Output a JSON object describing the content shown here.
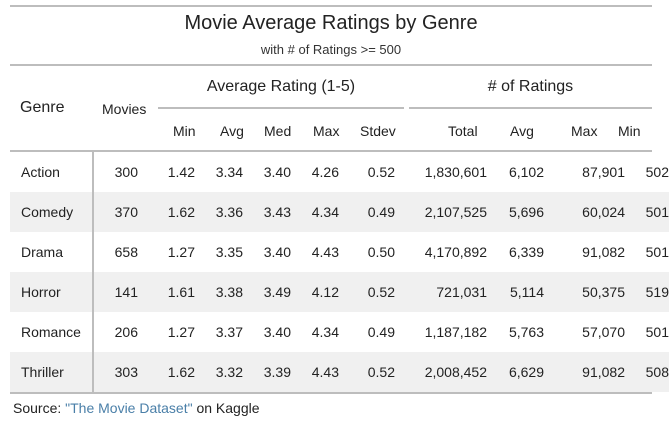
{
  "title": "Movie Average Ratings by Genre",
  "subtitle": "with # of Ratings >= 500",
  "headers": {
    "genre": "Genre",
    "movies": "Movies",
    "avg_rating_group": "Average Rating (1-5)",
    "ratings_group": "# of Ratings",
    "rating_cols": [
      "Min",
      "Avg",
      "Med",
      "Max",
      "Stdev"
    ],
    "count_cols": [
      "Total",
      "Avg",
      "Max",
      "Min"
    ]
  },
  "rows": [
    {
      "genre": "Action",
      "cells": [
        "300",
        "1.42",
        "3.34",
        "3.40",
        "4.26",
        "0.52",
        "1,830,601",
        "6,102",
        "87,901",
        "502"
      ]
    },
    {
      "genre": "Comedy",
      "cells": [
        "370",
        "1.62",
        "3.36",
        "3.43",
        "4.34",
        "0.49",
        "2,107,525",
        "5,696",
        "60,024",
        "501"
      ]
    },
    {
      "genre": "Drama",
      "cells": [
        "658",
        "1.27",
        "3.35",
        "3.40",
        "4.43",
        "0.50",
        "4,170,892",
        "6,339",
        "91,082",
        "501"
      ]
    },
    {
      "genre": "Horror",
      "cells": [
        "141",
        "1.61",
        "3.38",
        "3.49",
        "4.12",
        "0.52",
        "721,031",
        "5,114",
        "50,375",
        "519"
      ]
    },
    {
      "genre": "Romance",
      "cells": [
        "206",
        "1.27",
        "3.37",
        "3.40",
        "4.34",
        "0.49",
        "1,187,182",
        "5,763",
        "57,070",
        "501"
      ]
    },
    {
      "genre": "Thriller",
      "cells": [
        "303",
        "1.62",
        "3.32",
        "3.39",
        "4.43",
        "0.52",
        "2,008,452",
        "6,629",
        "91,082",
        "508"
      ]
    }
  ],
  "source": {
    "prefix": "Source: ",
    "link_text": "\"The Movie Dataset\"",
    "suffix": " on Kaggle"
  }
}
